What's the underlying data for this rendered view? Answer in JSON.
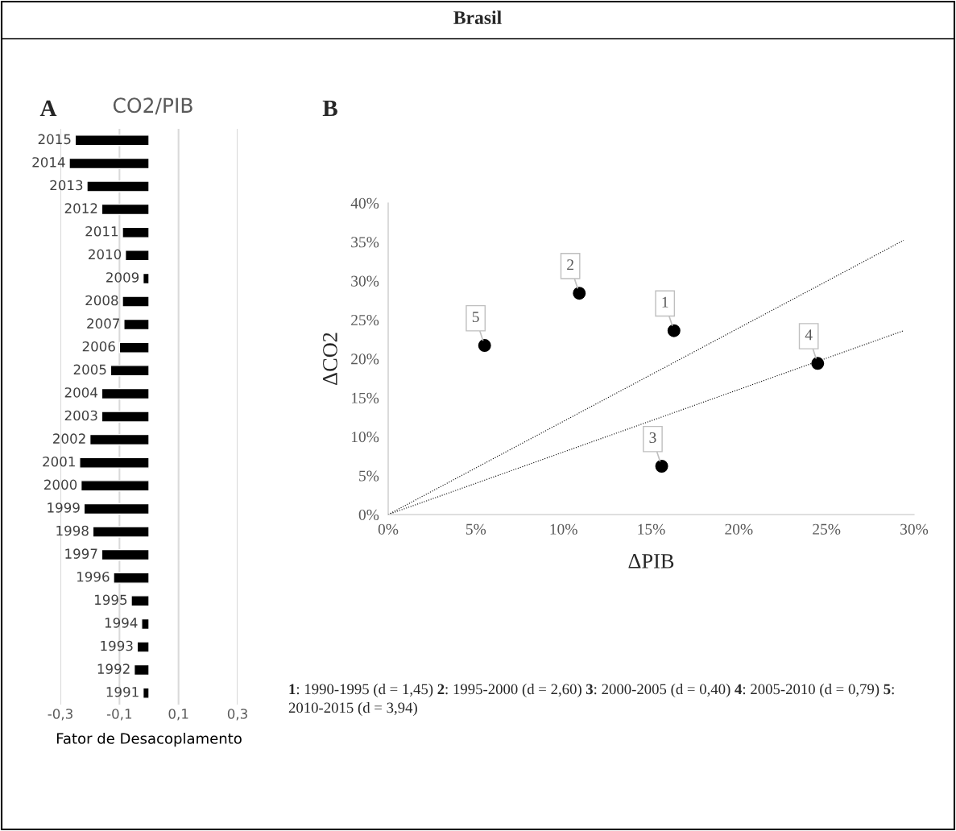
{
  "chart_data": [
    {
      "type": "bar",
      "orientation": "horizontal",
      "title": "CO2/PIB",
      "xlabel": "Fator de Desacoplamento",
      "annotations": [
        "Brasil",
        "A"
      ],
      "categories": [
        "2015",
        "2014",
        "2013",
        "2012",
        "2011",
        "2010",
        "2009",
        "2008",
        "2007",
        "2006",
        "2005",
        "2004",
        "2003",
        "2002",
        "2001",
        "2000",
        "1999",
        "1998",
        "1997",
        "1996",
        "1995",
        "1994",
        "1993",
        "1992",
        "1991"
      ],
      "values": [
        -0.25,
        -0.27,
        -0.21,
        -0.16,
        -0.09,
        -0.08,
        -0.02,
        -0.09,
        -0.085,
        -0.1,
        -0.13,
        -0.16,
        -0.16,
        -0.2,
        -0.235,
        -0.23,
        -0.22,
        -0.19,
        -0.16,
        -0.12,
        -0.06,
        -0.025,
        -0.04,
        -0.05,
        -0.02
      ],
      "color": "#000000",
      "xlim": [
        -0.3,
        0.3
      ],
      "xticks": [
        {
          "value": -0.3,
          "label": "-0,3"
        },
        {
          "value": -0.1,
          "label": "-0,1"
        },
        {
          "value": 0.1,
          "label": "0,1"
        },
        {
          "value": 0.3,
          "label": "0,3"
        }
      ],
      "grid": "x",
      "legend": false
    },
    {
      "type": "scatter",
      "xlabel": "ΔPIB",
      "ylabel": "ΔCO2",
      "annotations": [
        "B",
        {
          "text": "1",
          "x": 16.3,
          "y": 23.6
        },
        {
          "text": "2",
          "x": 10.9,
          "y": 28.4
        },
        {
          "text": "3",
          "x": 15.6,
          "y": 6.2
        },
        {
          "text": "4",
          "x": 24.5,
          "y": 19.4
        },
        {
          "text": "5",
          "x": 5.5,
          "y": 21.7
        },
        "1: 1990-1995 (d = 1,45)",
        "2: 1995-2000 (d = 2,60)",
        "3: 2000-2005 (d = 0,40)",
        "4: 2005-2010 (d = 0,79)",
        "5: 2010-2015 (d = 3,94)"
      ],
      "series": [
        {
          "type": "scatter",
          "color": "#000000",
          "x": [
            16.3,
            10.9,
            15.6,
            24.5,
            5.5
          ],
          "values": [
            23.6,
            28.4,
            6.2,
            19.4,
            21.7
          ],
          "marker": "circle"
        },
        {
          "type": "line",
          "color": "#000000",
          "x": [
            0,
            29.4
          ],
          "values": [
            0,
            35.2
          ],
          "line_style": "dotted"
        },
        {
          "type": "line",
          "color": "#000000",
          "x": [
            0,
            29.4
          ],
          "values": [
            0,
            23.6
          ],
          "line_style": "dotted"
        }
      ],
      "xlim": [
        0,
        30
      ],
      "ylim": [
        0,
        40
      ],
      "xticks": [
        {
          "value": 0,
          "label": "0%"
        },
        {
          "value": 5,
          "label": "5%"
        },
        {
          "value": 10,
          "label": "10%"
        },
        {
          "value": 15,
          "label": "15%"
        },
        {
          "value": 20,
          "label": "20%"
        },
        {
          "value": 25,
          "label": "25%"
        },
        {
          "value": 30,
          "label": "30%"
        }
      ],
      "yticks": [
        {
          "value": 0,
          "label": "0%"
        },
        {
          "value": 5,
          "label": "5%"
        },
        {
          "value": 10,
          "label": "10%"
        },
        {
          "value": 15,
          "label": "15%"
        },
        {
          "value": 20,
          "label": "20%"
        },
        {
          "value": 25,
          "label": "25%"
        },
        {
          "value": 30,
          "label": "30%"
        },
        {
          "value": 35,
          "label": "35%"
        },
        {
          "value": 40,
          "label": "40%"
        }
      ],
      "grid": false,
      "legend": false
    }
  ]
}
